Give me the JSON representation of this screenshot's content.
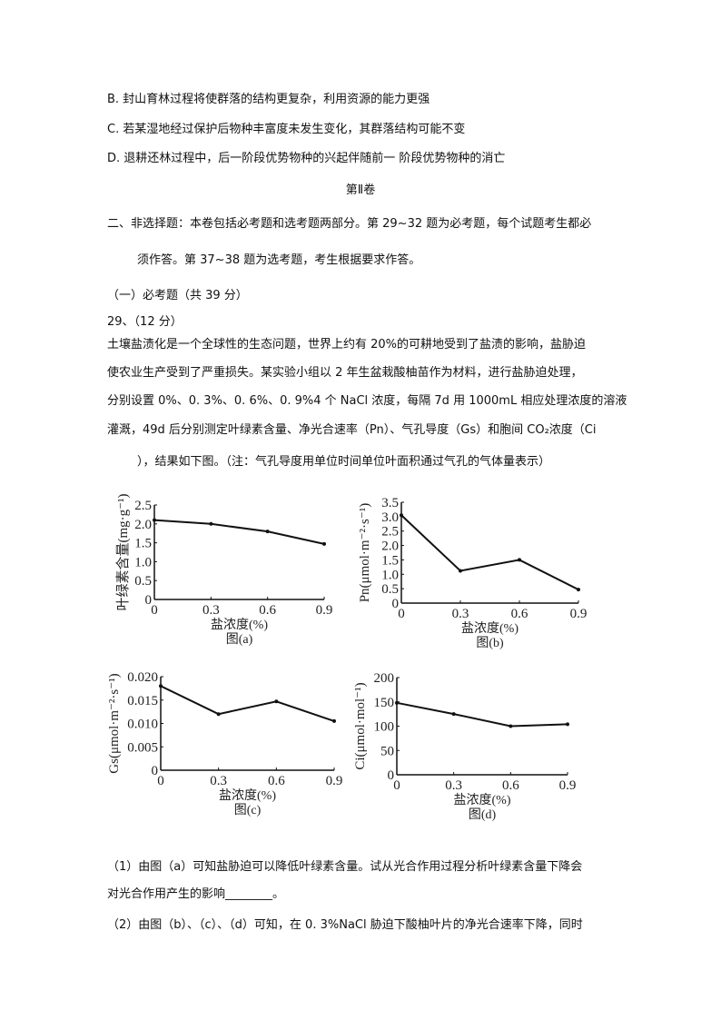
{
  "lines": {
    "optB": "B. 封山育林过程将使群落的结构更复杂，利用资源的能力更强",
    "optC": "C. 若某湿地经过保护后物种丰富度未发生变化，其群落结构可能不变",
    "optD": "D. 退耕还林过程中，后一阶段优势物种的兴起伴随前一 阶段优势物种的消亡",
    "section": "第Ⅱ卷",
    "part2_1": "二、非选择题：本卷包括必考题和选考题两部分。第 29~32 题为必考题，每个试题考生都必",
    "part2_2": "须作答。第 37~38 题为选考题，考生根据要求作答。",
    "required": "（一）必考题（共 39 分）",
    "q29": "29、（12 分）",
    "p1": "土壤盐渍化是一个全球性的生态问题，世界上约有 20%的可耕地受到了盐渍的影响，盐胁迫",
    "p2": "使农业生产受到了严重损失。某实验小组以 2 年生盆栽酸柚苗作为材料，进行盐胁迫处理，",
    "p3": "分别设置 0%、0. 3%、0. 6%、0. 9%4 个 NaCl 浓度，每隔 7d 用 1000mL 相应处理浓度的溶液",
    "p4": "灌溉，49d 后分别测定叶绿素含量、净光合速率（Pn）、气孔导度（Gs）和胞间 CO₂浓度（Ci",
    "p5": "），结果如下图。（注：气孔导度用单位时间单位叶面积通过气孔的气体量表示）",
    "s1a": "（1）由图（a）可知盐胁迫可以降低叶绿素含量。试从光合作用过程分析叶绿素含量下降会",
    "s1b": "对光合作用产生的影响________。",
    "s2": "（2）由图（b）、（c）、（d）可知，在 0. 3%NaCl 胁迫下酸柚叶片的净光合速率下降，同时"
  },
  "chart_data": [
    {
      "type": "line",
      "title": "图(a)",
      "xlabel": "盐浓度(%)",
      "ylabel": "叶绿素含量(mg·g⁻¹)",
      "x": [
        0,
        0.3,
        0.6,
        0.9
      ],
      "values": [
        2.1,
        2.0,
        1.8,
        1.47
      ],
      "xticks": [
        "0",
        "0.3",
        "0.6",
        "0.9"
      ],
      "yticks": [
        "0",
        "0.5",
        "1.0",
        "1.5",
        "2.0",
        "2.5"
      ],
      "ylim": [
        0,
        2.5
      ],
      "xlim": [
        0,
        0.9
      ],
      "grid": false
    },
    {
      "type": "line",
      "title": "图(b)",
      "xlabel": "盐浓度(%)",
      "ylabel": "Pn(μmol·m⁻²·s⁻¹)",
      "x": [
        0,
        0.3,
        0.6,
        0.9
      ],
      "values": [
        3.05,
        1.12,
        1.5,
        0.47
      ],
      "xticks": [
        "0",
        "0.3",
        "0.6",
        "0.9"
      ],
      "yticks": [
        "0",
        "0.5",
        "1.0",
        "1.5",
        "2.0",
        "2.5",
        "3.0",
        "3.5"
      ],
      "ylim": [
        0,
        3.5
      ],
      "xlim": [
        0,
        0.9
      ],
      "grid": false
    },
    {
      "type": "line",
      "title": "图(c)",
      "xlabel": "盐浓度(%)",
      "ylabel": "Gs(μmol·m⁻²·s⁻¹)",
      "x": [
        0,
        0.3,
        0.6,
        0.9
      ],
      "values": [
        0.018,
        0.012,
        0.0147,
        0.0105
      ],
      "xticks": [
        "0",
        "0.3",
        "0.6",
        "0.9"
      ],
      "yticks": [
        "0",
        "0.005",
        "0.010",
        "0.015",
        "0.020"
      ],
      "ylim": [
        0,
        0.02
      ],
      "xlim": [
        0,
        0.9
      ],
      "grid": false
    },
    {
      "type": "line",
      "title": "图(d)",
      "xlabel": "盐浓度(%)",
      "ylabel": "Ci(μmol·mol⁻¹)",
      "x": [
        0,
        0.3,
        0.6,
        0.9
      ],
      "values": [
        148,
        125,
        100,
        104
      ],
      "xticks": [
        "0",
        "0.3",
        "0.6",
        "0.9"
      ],
      "yticks": [
        "0",
        "50",
        "100",
        "150",
        "200"
      ],
      "ylim": [
        0,
        200
      ],
      "xlim": [
        0,
        0.9
      ],
      "grid": false
    }
  ]
}
